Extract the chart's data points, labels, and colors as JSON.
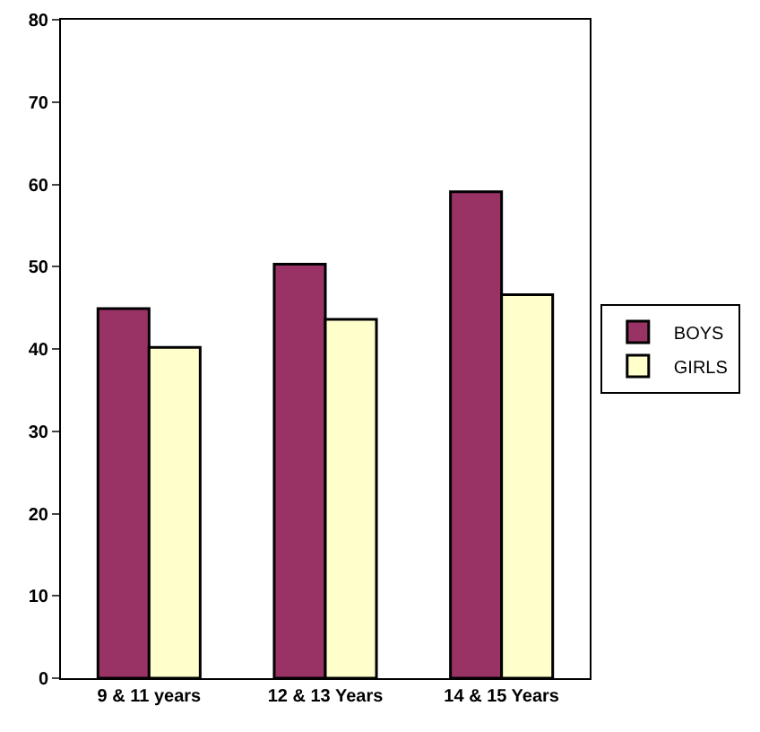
{
  "chart_data": {
    "type": "bar",
    "categories": [
      "9 & 11 years",
      "12 & 13 Years",
      "14 & 15 Years"
    ],
    "series": [
      {
        "name": "BOYS",
        "color": "#993366",
        "values": [
          44.9,
          50.3,
          59.1
        ]
      },
      {
        "name": "GIRLS",
        "color": "#ffffcc",
        "values": [
          40.2,
          43.6,
          46.6
        ]
      }
    ],
    "ylim": [
      0,
      80
    ],
    "yticks": [
      0,
      10,
      20,
      30,
      40,
      50,
      60,
      70,
      80
    ],
    "grid": false,
    "legend": "right"
  }
}
